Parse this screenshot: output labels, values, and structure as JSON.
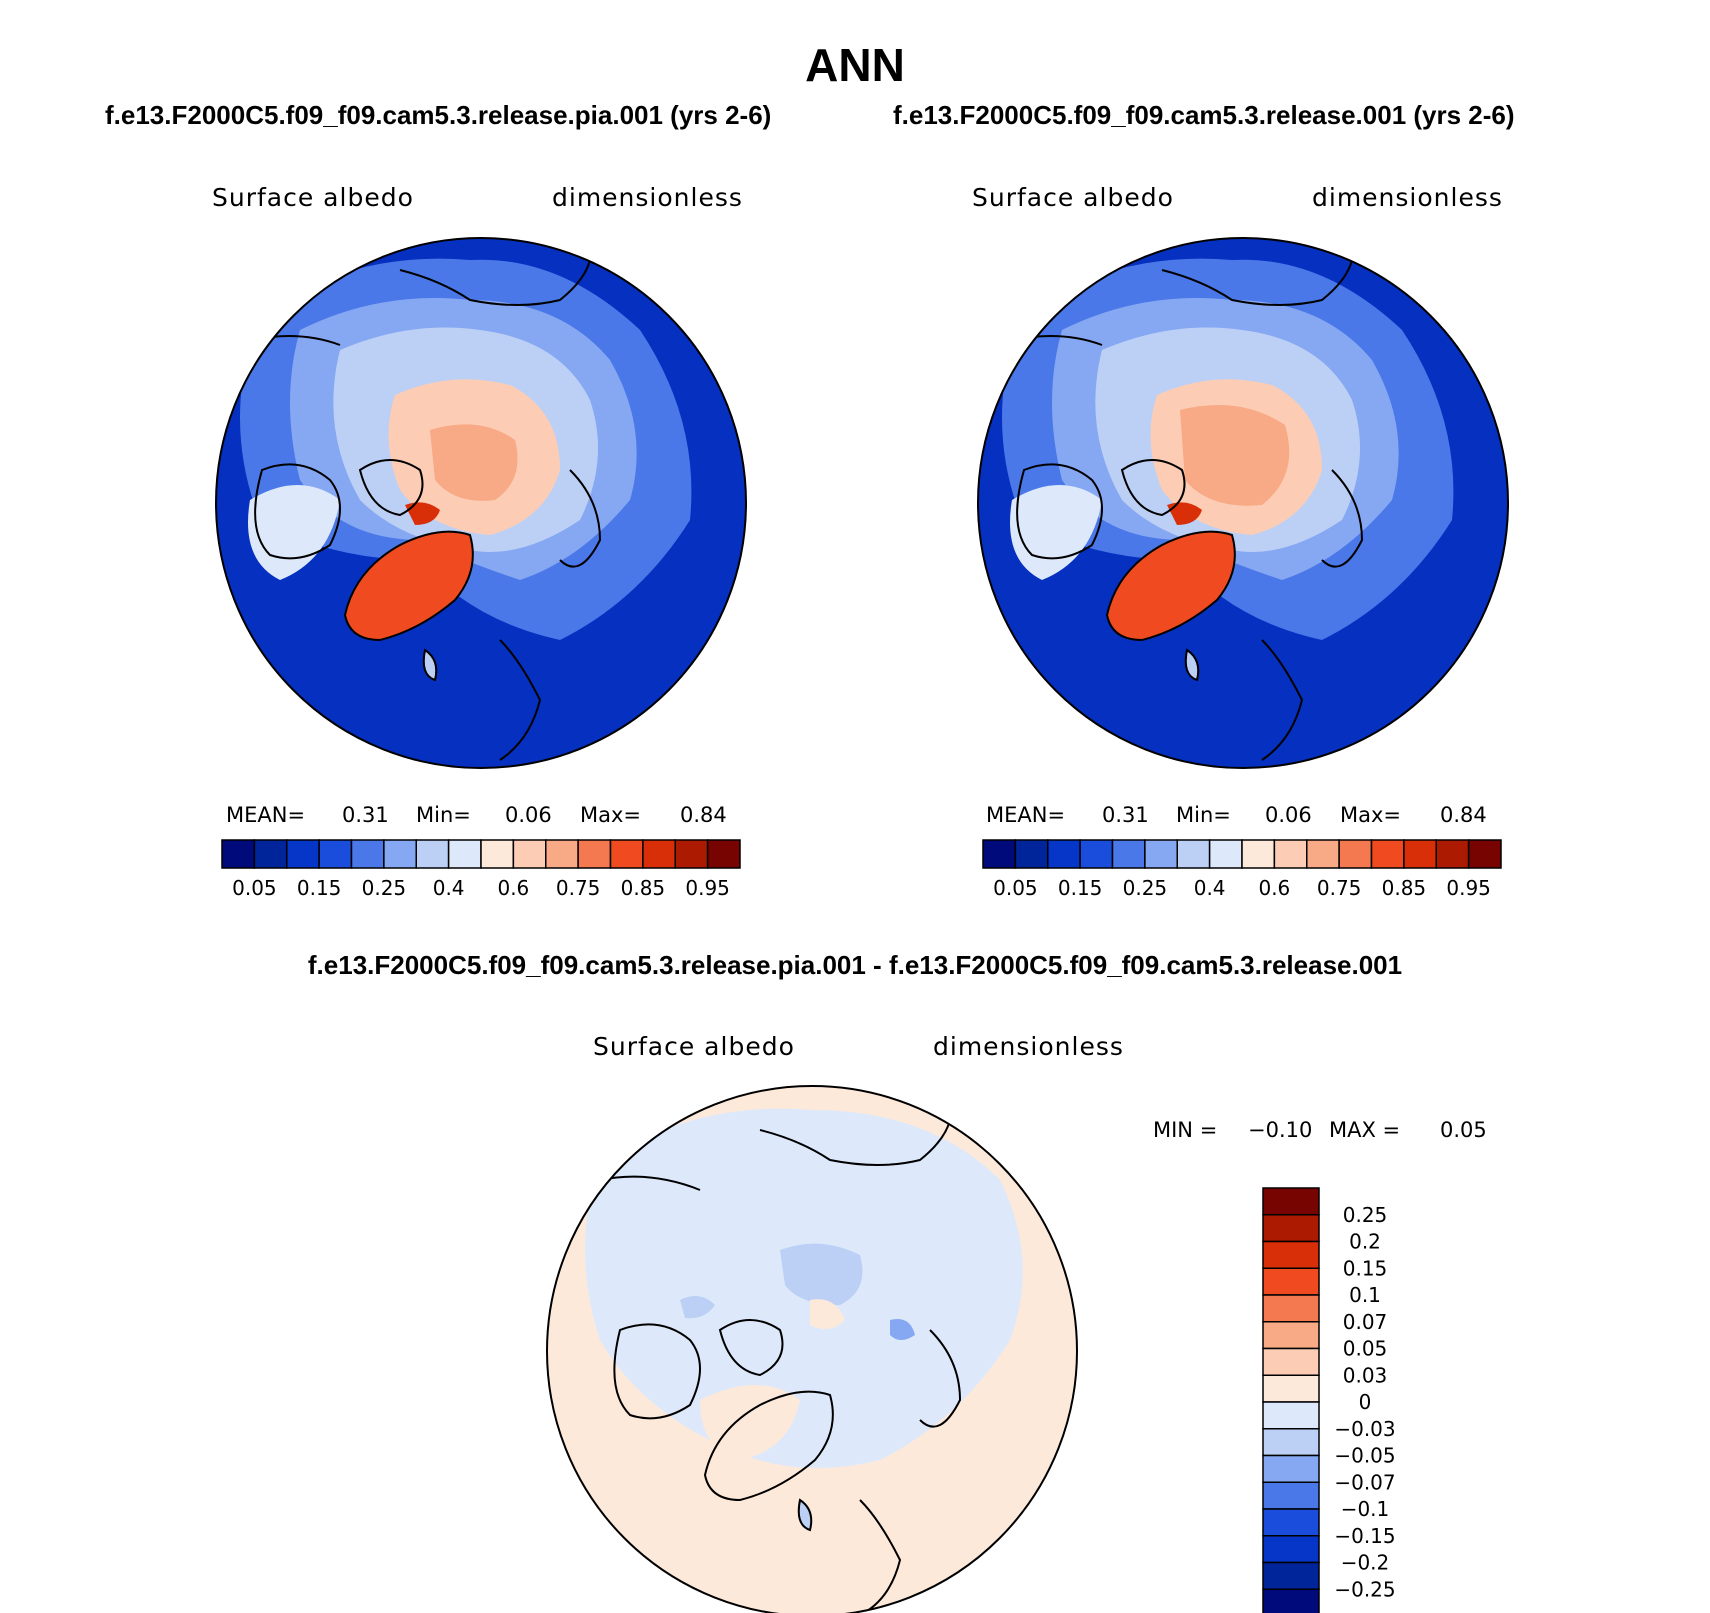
{
  "title": "ANN",
  "panels": [
    {
      "case_title": "f.e13.F2000C5.f09_f09.cam5.3.release.pia.001 (yrs 2-6)",
      "variable": "Surface albedo",
      "units": "dimensionless",
      "stats": {
        "mean_label": "MEAN=",
        "mean": "0.31",
        "min_label": "Min=",
        "min": "0.06",
        "max_label": "Max=",
        "max": "0.84"
      }
    },
    {
      "case_title": "f.e13.F2000C5.f09_f09.cam5.3.release.001 (yrs 2-6)",
      "variable": "Surface albedo",
      "units": "dimensionless",
      "stats": {
        "mean_label": "MEAN=",
        "mean": "0.31",
        "min_label": "Min=",
        "min": "0.06",
        "max_label": "Max=",
        "max": "0.84"
      }
    }
  ],
  "diff": {
    "title": "f.e13.F2000C5.f09_f09.cam5.3.release.pia.001 - f.e13.F2000C5.f09_f09.cam5.3.release.001",
    "variable": "Surface albedo",
    "units": "dimensionless",
    "stats": {
      "min_label": "MIN =",
      "min": "−0.10",
      "max_label": "MAX =",
      "max": "0.05"
    }
  },
  "colorbar_abs": {
    "colors": [
      "#000a7a",
      "#00249a",
      "#0536c8",
      "#1a4ddc",
      "#4a78e8",
      "#86a8f2",
      "#bcd0f6",
      "#dde9fb",
      "#fde9da",
      "#fccdb4",
      "#f8a986",
      "#f47850",
      "#ef4a20",
      "#d82f08",
      "#ac1a02",
      "#780402"
    ],
    "labels": [
      "0.05",
      "0.15",
      "0.25",
      "0.4",
      "0.6",
      "0.75",
      "0.85",
      "0.95"
    ]
  },
  "colorbar_diff": {
    "colors": [
      "#780402",
      "#ac1a02",
      "#d82f08",
      "#ef4a20",
      "#f47850",
      "#f8a986",
      "#fccdb4",
      "#fde9da",
      "#dde9fb",
      "#bcd0f6",
      "#86a8f2",
      "#4a78e8",
      "#1a4ddc",
      "#0536c8",
      "#00249a",
      "#000a7a"
    ],
    "labels": [
      "0.25",
      "0.2",
      "0.15",
      "0.1",
      "0.07",
      "0.05",
      "0.03",
      "0",
      "−0.03",
      "−0.05",
      "−0.07",
      "−0.1",
      "−0.15",
      "−0.2",
      "−0.25"
    ]
  },
  "colors": {
    "ocean": "#0530c0",
    "ice_outer": "#bcd0f6",
    "ice_core": "#fccdb4",
    "greenland": "#ef4a20",
    "diff_bg": "#dde9fb",
    "diff_warm": "#fde9da",
    "coast": "#000000"
  }
}
